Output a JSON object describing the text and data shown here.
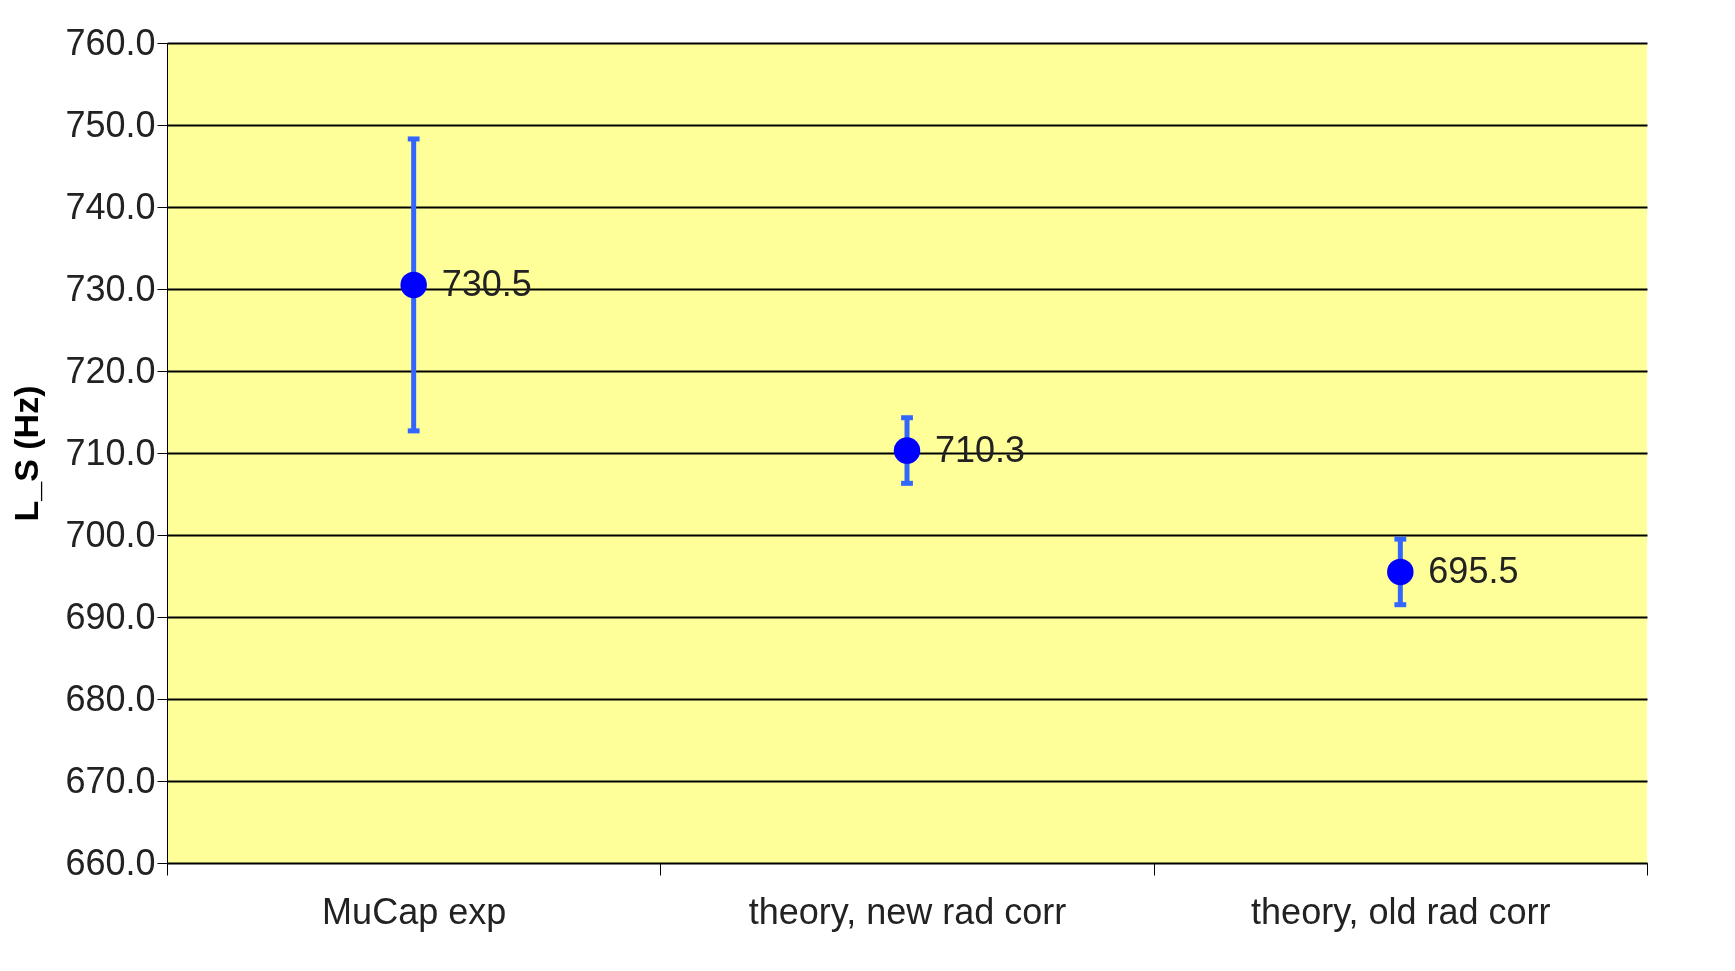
{
  "chart_data": {
    "type": "scatter",
    "ylabel": "L_S (Hz)",
    "categories": [
      "MuCap exp",
      "theory, new rad corr",
      "theory, old rad corr"
    ],
    "series": [
      {
        "color": "#0000ff",
        "values": [
          730.5,
          710.3,
          695.5
        ],
        "errors": [
          17.8,
          4.0,
          4.0
        ]
      }
    ],
    "ylim": [
      660,
      760
    ],
    "yticks": [
      {
        "value": 660,
        "label": "660.0"
      },
      {
        "value": 670,
        "label": "670.0"
      },
      {
        "value": 680,
        "label": "680.0"
      },
      {
        "value": 690,
        "label": "690.0"
      },
      {
        "value": 700,
        "label": "700.0"
      },
      {
        "value": 710,
        "label": "710.0"
      },
      {
        "value": 720,
        "label": "720.0"
      },
      {
        "value": 730,
        "label": "730.0"
      },
      {
        "value": 740,
        "label": "740.0"
      },
      {
        "value": 750,
        "label": "750.0"
      },
      {
        "value": 760,
        "label": "760.0"
      }
    ],
    "grid": "y",
    "marker": "circle",
    "data_labels": true
  }
}
